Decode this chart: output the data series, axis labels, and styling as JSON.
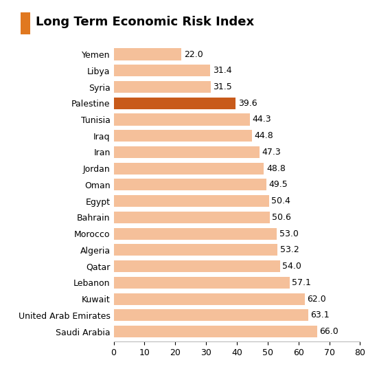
{
  "title": "Long Term Economic Risk Index",
  "categories": [
    "Yemen",
    "Libya",
    "Syria",
    "Palestine",
    "Tunisia",
    "Iraq",
    "Iran",
    "Jordan",
    "Oman",
    "Egypt",
    "Bahrain",
    "Morocco",
    "Algeria",
    "Qatar",
    "Lebanon",
    "Kuwait",
    "United Arab Emirates",
    "Saudi Arabia"
  ],
  "values": [
    22.0,
    31.4,
    31.5,
    39.6,
    44.3,
    44.8,
    47.3,
    48.8,
    49.5,
    50.4,
    50.6,
    53.0,
    53.2,
    54.0,
    57.1,
    62.0,
    63.1,
    66.0
  ],
  "bar_colors": [
    "#f5c09a",
    "#f5c09a",
    "#f5c09a",
    "#c85a1a",
    "#f5c09a",
    "#f5c09a",
    "#f5c09a",
    "#f5c09a",
    "#f5c09a",
    "#f5c09a",
    "#f5c09a",
    "#f5c09a",
    "#f5c09a",
    "#f5c09a",
    "#f5c09a",
    "#f5c09a",
    "#f5c09a",
    "#f5c09a"
  ],
  "icon_color": "#e07820",
  "xlim": [
    0,
    80
  ],
  "xticks": [
    0,
    10,
    20,
    30,
    40,
    50,
    60,
    70,
    80
  ],
  "background_color": "#ffffff",
  "label_fontsize": 9,
  "title_fontsize": 13,
  "value_fontsize": 9,
  "bar_height": 0.72
}
